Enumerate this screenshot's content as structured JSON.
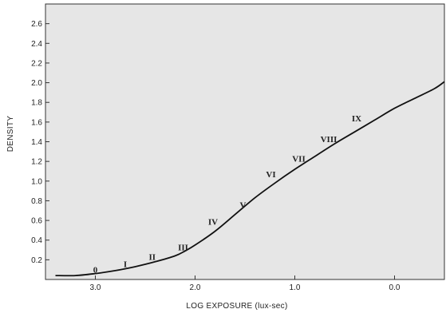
{
  "chart_data": {
    "type": "line",
    "title": "",
    "xlabel": "LOG EXPOSURE (lux-sec)",
    "ylabel": "DENSITY",
    "xlim": [
      3.5,
      -0.5
    ],
    "ylim": [
      0,
      2.8
    ],
    "x_reversed": true,
    "grid": false,
    "background": "#e6e6e6",
    "line_color": "#111111",
    "x_ticks": [
      {
        "value": 3.0,
        "label": "3.0"
      },
      {
        "value": 2.0,
        "label": "2.0"
      },
      {
        "value": 1.0,
        "label": "1.0"
      },
      {
        "value": 0.0,
        "label": "0.0"
      }
    ],
    "y_ticks": [
      {
        "value": 0.2,
        "label": "0.2"
      },
      {
        "value": 0.4,
        "label": "0.4"
      },
      {
        "value": 0.6,
        "label": "0.6"
      },
      {
        "value": 0.8,
        "label": "0.8"
      },
      {
        "value": 1.0,
        "label": "1.0"
      },
      {
        "value": 1.2,
        "label": "1.2"
      },
      {
        "value": 1.4,
        "label": "1.4"
      },
      {
        "value": 1.6,
        "label": "1.6"
      },
      {
        "value": 1.8,
        "label": "1.8"
      },
      {
        "value": 2.0,
        "label": "2.0"
      },
      {
        "value": 2.2,
        "label": "2.2"
      },
      {
        "value": 2.4,
        "label": "2.4"
      },
      {
        "value": 2.6,
        "label": "2.6"
      }
    ],
    "series": [
      {
        "x": [
          3.4,
          3.2,
          3.0,
          2.8,
          2.6,
          2.4,
          2.2,
          2.1,
          2.0,
          1.8,
          1.6,
          1.4,
          1.2,
          1.0,
          0.8,
          0.6,
          0.4,
          0.2,
          0.0,
          -0.2,
          -0.4,
          -0.5
        ],
        "y": [
          0.04,
          0.04,
          0.06,
          0.09,
          0.13,
          0.18,
          0.24,
          0.29,
          0.35,
          0.49,
          0.66,
          0.83,
          0.98,
          1.12,
          1.25,
          1.38,
          1.5,
          1.62,
          1.74,
          1.84,
          1.94,
          2.01
        ]
      }
    ],
    "annotations": [
      {
        "text": "0",
        "x": 3.0,
        "y": 0.1
      },
      {
        "text": "I",
        "x": 2.7,
        "y": 0.16
      },
      {
        "text": "II",
        "x": 2.43,
        "y": 0.23
      },
      {
        "text": "III",
        "x": 2.12,
        "y": 0.33
      },
      {
        "text": "IV",
        "x": 1.82,
        "y": 0.59
      },
      {
        "text": "V",
        "x": 1.52,
        "y": 0.76
      },
      {
        "text": "VI",
        "x": 1.24,
        "y": 1.07
      },
      {
        "text": "VII",
        "x": 0.96,
        "y": 1.23
      },
      {
        "text": "VIII",
        "x": 0.66,
        "y": 1.43
      },
      {
        "text": "IX",
        "x": 0.38,
        "y": 1.64
      }
    ]
  }
}
